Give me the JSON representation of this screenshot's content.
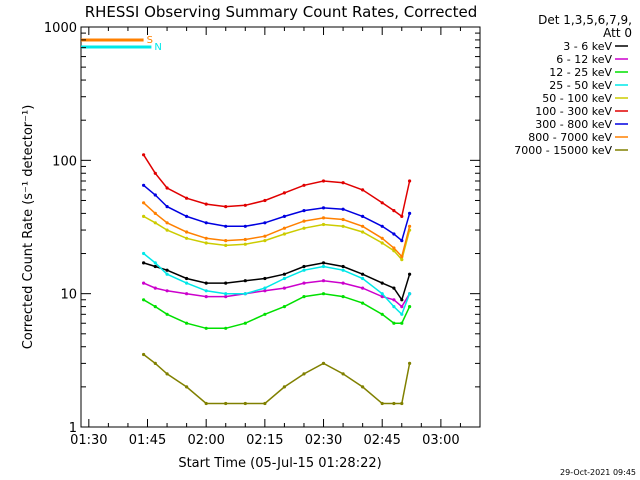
{
  "chart_data": {
    "type": "line",
    "title": "RHESSI Observing Summary Count Rates, Corrected",
    "xlabel": "Start Time (05-Jul-15 01:28:22)",
    "ylabel": "Corrected Count Rate (s⁻¹ detector⁻¹)",
    "ylog": true,
    "ylim": [
      1,
      1000
    ],
    "xlim": [
      "01:28",
      "03:10"
    ],
    "x_ticks": [
      "01:30",
      "01:45",
      "02:00",
      "02:15",
      "02:30",
      "02:45",
      "03:00"
    ],
    "y_ticks": [
      "1",
      "10",
      "100",
      "1000"
    ],
    "legend_title": "Det 1,3,5,6,7,9,",
    "legend_subtitle": "Att 0",
    "legend_position": "right",
    "timestamp": "29-Oct-2021 09:45",
    "x": [
      "01:44",
      "01:47",
      "01:50",
      "01:55",
      "02:00",
      "02:05",
      "02:10",
      "02:15",
      "02:20",
      "02:25",
      "02:30",
      "02:35",
      "02:40",
      "02:45",
      "02:48",
      "02:50",
      "02:52"
    ],
    "series": [
      {
        "name": "3 - 6 keV",
        "color": "#000000",
        "values": [
          17,
          16,
          15,
          13,
          12,
          12,
          12.5,
          13,
          14,
          16,
          17,
          16,
          14,
          12,
          11,
          9,
          14
        ]
      },
      {
        "name": "6 - 12 keV",
        "color": "#cc00cc",
        "values": [
          12,
          11,
          10.5,
          10,
          9.5,
          9.5,
          10,
          10.5,
          11,
          12,
          12.5,
          12,
          11,
          9.5,
          9,
          8,
          10
        ]
      },
      {
        "name": "12 - 25 keV",
        "color": "#00e000",
        "values": [
          9,
          8,
          7,
          6,
          5.5,
          5.5,
          6,
          7,
          8,
          9.5,
          10,
          9.5,
          8.5,
          7,
          6,
          6,
          8
        ]
      },
      {
        "name": "25 - 50 keV",
        "color": "#00e8e8",
        "values": [
          20,
          17,
          14,
          12,
          10.5,
          10,
          10,
          11,
          13,
          15,
          16,
          15,
          13,
          10,
          8,
          7,
          10
        ]
      },
      {
        "name": "50 - 100 keV",
        "color": "#cccc00",
        "values": [
          38,
          34,
          30,
          26,
          24,
          23,
          23.5,
          25,
          28,
          31,
          33,
          32,
          29,
          24,
          21,
          18,
          30
        ]
      },
      {
        "name": "100 - 300 keV",
        "color": "#e00000",
        "values": [
          110,
          80,
          62,
          52,
          47,
          45,
          46,
          50,
          57,
          65,
          70,
          68,
          60,
          48,
          42,
          38,
          70
        ]
      },
      {
        "name": "300 - 800 keV",
        "color": "#0000e0",
        "values": [
          65,
          55,
          45,
          38,
          34,
          32,
          32,
          34,
          38,
          42,
          44,
          43,
          38,
          32,
          28,
          25,
          40
        ]
      },
      {
        "name": "800 - 7000 keV",
        "color": "#ff8000",
        "values": [
          48,
          40,
          34,
          29,
          26,
          25,
          25.5,
          27,
          31,
          35,
          37,
          36,
          32,
          26,
          22,
          19,
          32
        ]
      },
      {
        "name": "7000 - 15000 keV",
        "color": "#808000",
        "values": [
          3.5,
          3,
          2.5,
          2,
          1.5,
          1.5,
          1.5,
          1.5,
          2,
          2.5,
          3,
          2.5,
          2,
          1.5,
          1.5,
          1.5,
          3
        ]
      }
    ],
    "markers": [
      {
        "label": "S",
        "color": "#ff8000",
        "x_start": "01:28",
        "x_end": "01:44"
      },
      {
        "label": "N",
        "color": "#00e8e8",
        "x_start": "01:28",
        "x_end": "01:46"
      }
    ],
    "grid": false
  }
}
